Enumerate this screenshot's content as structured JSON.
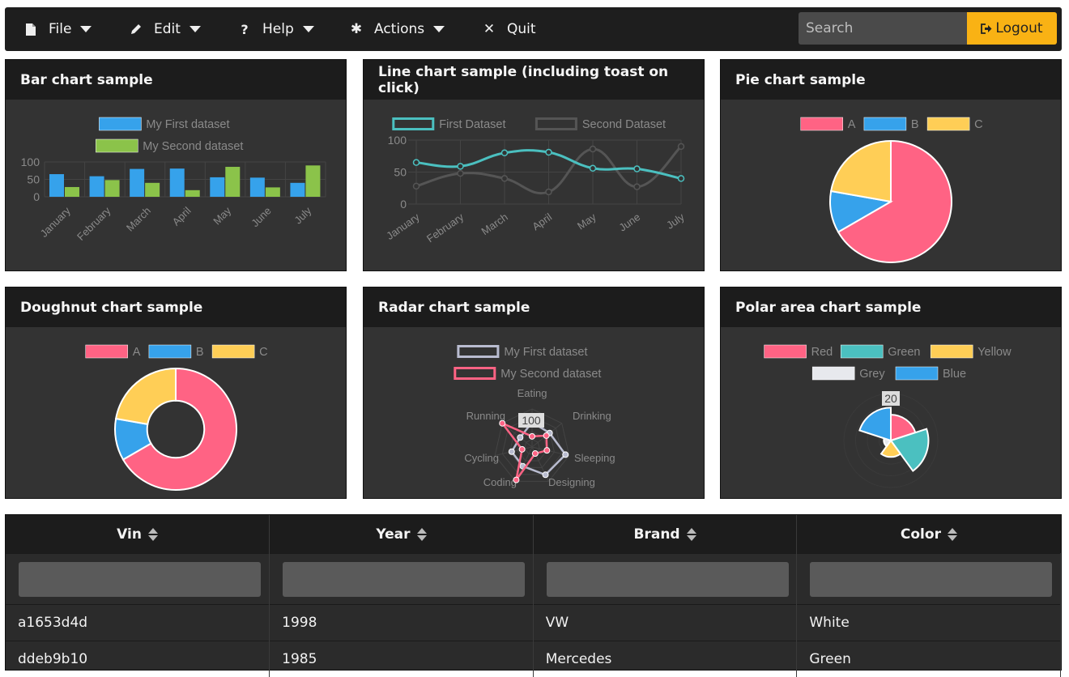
{
  "menubar": {
    "items": [
      {
        "label": "File",
        "icon": "file-icon"
      },
      {
        "label": "Edit",
        "icon": "pencil-icon"
      },
      {
        "label": "Help",
        "icon": "question-icon"
      },
      {
        "label": "Actions",
        "icon": "gear-icon"
      },
      {
        "label": "Quit",
        "icon": "close-icon"
      }
    ],
    "search_placeholder": "Search",
    "logout_label": "Logout"
  },
  "panels": {
    "bar": {
      "title": "Bar chart sample"
    },
    "line": {
      "title": "Line chart sample (including toast on click)"
    },
    "pie": {
      "title": "Pie chart sample"
    },
    "doughnut": {
      "title": "Doughnut chart sample"
    },
    "radar": {
      "title": "Radar chart sample"
    },
    "polar": {
      "title": "Polar area chart sample"
    }
  },
  "chart_data": [
    {
      "id": "bar",
      "type": "bar",
      "title": "Bar chart sample",
      "categories": [
        "January",
        "February",
        "March",
        "April",
        "May",
        "June",
        "July"
      ],
      "series": [
        {
          "name": "My First dataset",
          "color": "#36a2eb",
          "values": [
            65,
            59,
            80,
            81,
            56,
            55,
            40
          ]
        },
        {
          "name": "My Second dataset",
          "color": "#8bc34a",
          "values": [
            28,
            48,
            40,
            19,
            86,
            27,
            90
          ]
        }
      ],
      "ylim": [
        0,
        100
      ],
      "yticks": [
        "100",
        "50",
        "0"
      ]
    },
    {
      "id": "line",
      "type": "line",
      "title": "Line chart sample (including toast on click)",
      "categories": [
        "January",
        "February",
        "March",
        "April",
        "May",
        "June",
        "July"
      ],
      "series": [
        {
          "name": "First Dataset",
          "color": "#4bc0c0",
          "values": [
            65,
            59,
            80,
            81,
            56,
            55,
            40
          ]
        },
        {
          "name": "Second Dataset",
          "color": "#555555",
          "values": [
            28,
            48,
            40,
            19,
            86,
            27,
            90
          ]
        }
      ],
      "ylim": [
        0,
        100
      ],
      "yticks": [
        "100",
        "50",
        "0"
      ]
    },
    {
      "id": "pie",
      "type": "pie",
      "title": "Pie chart sample",
      "labels": [
        "A",
        "B",
        "C"
      ],
      "values": [
        300,
        50,
        100
      ],
      "colors": [
        "#ff6384",
        "#36a2eb",
        "#ffce56"
      ]
    },
    {
      "id": "doughnut",
      "type": "doughnut",
      "title": "Doughnut chart sample",
      "labels": [
        "A",
        "B",
        "C"
      ],
      "values": [
        300,
        50,
        100
      ],
      "colors": [
        "#ff6384",
        "#36a2eb",
        "#ffce56"
      ]
    },
    {
      "id": "radar",
      "type": "radar",
      "title": "Radar chart sample",
      "labels": [
        "Eating",
        "Drinking",
        "Sleeping",
        "Designing",
        "Coding",
        "Cycling",
        "Running"
      ],
      "tick_label": "100",
      "max": 100,
      "series": [
        {
          "name": "My First dataset",
          "color": "#b9bcd0",
          "values": [
            65,
            59,
            90,
            81,
            56,
            55,
            40
          ]
        },
        {
          "name": "My Second dataset",
          "color": "#ff6384",
          "values": [
            28,
            48,
            40,
            19,
            96,
            27,
            100
          ]
        }
      ]
    },
    {
      "id": "polar",
      "type": "polarArea",
      "title": "Polar area chart sample",
      "labels": [
        "Red",
        "Green",
        "Yellow",
        "Grey",
        "Blue"
      ],
      "values": [
        11,
        16,
        7,
        3,
        14
      ],
      "colors": [
        "#ff6384",
        "#4bc0c0",
        "#ffce56",
        "#e7e9ed",
        "#36a2eb"
      ],
      "max": 20,
      "tick_label": "20"
    }
  ],
  "table": {
    "columns": [
      "Vin",
      "Year",
      "Brand",
      "Color"
    ],
    "rows": [
      [
        "a1653d4d",
        "1998",
        "VW",
        "White"
      ],
      [
        "ddeb9b10",
        "1985",
        "Mercedes",
        "Green"
      ]
    ]
  }
}
